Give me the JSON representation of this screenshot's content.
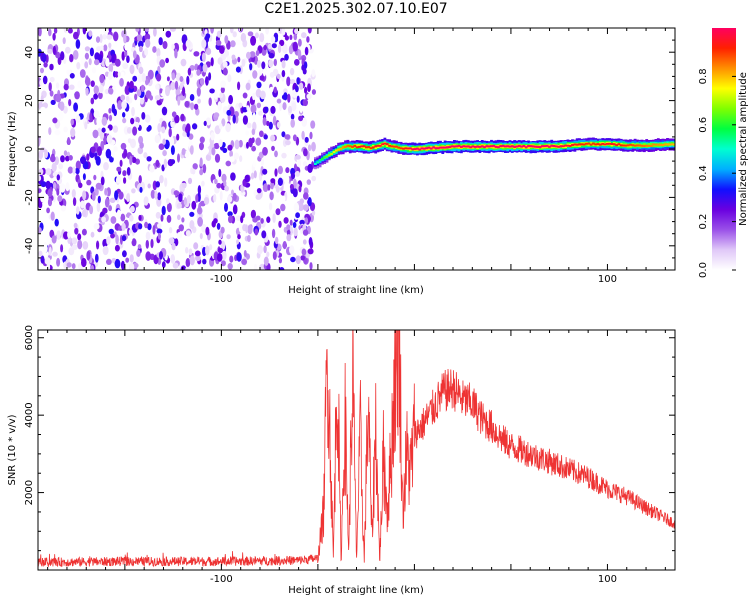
{
  "title": "C2E1.2025.302.07.10.E07",
  "chart_data": [
    {
      "type": "heatmap",
      "xlabel": "Height of straight line (km)",
      "ylabel": "Frequency (Hz)",
      "xlim": [
        -195,
        135
      ],
      "ylim": [
        -50,
        50
      ],
      "xticks": [
        -100,
        100
      ],
      "yticks": [
        -40,
        -20,
        0,
        20,
        40
      ],
      "grid": false,
      "colorbar": {
        "label": "Normalized spectral amplitude",
        "ticks": [
          0.0,
          0.2,
          0.4,
          0.6,
          0.8
        ],
        "range": [
          0,
          1
        ],
        "colors": [
          "#ffffff",
          "#e0c8f8",
          "#9a50e8",
          "#6a00e0",
          "#1010ff",
          "#00b0ff",
          "#00ffd0",
          "#00ff40",
          "#80ff00",
          "#ffff00",
          "#ff9000",
          "#ff2000",
          "#ff0060"
        ]
      },
      "noise_region_x": [
        -195,
        -52
      ],
      "ridge": {
        "x": [
          -52,
          -48,
          -44,
          -40,
          -36,
          -32,
          -28,
          -24,
          -20,
          -16,
          -12,
          -8,
          -4,
          0,
          10,
          20,
          30,
          40,
          50,
          60,
          70,
          80,
          90,
          100,
          110,
          120,
          135
        ],
        "freq": [
          -6,
          -4,
          -2,
          0,
          1,
          1,
          1,
          0.5,
          1,
          2,
          1,
          0.5,
          0,
          0,
          0.5,
          1,
          1,
          1,
          1,
          1,
          1,
          1.5,
          2,
          2,
          1.5,
          1.5,
          2
        ],
        "amplitude": [
          0.5,
          0.6,
          0.7,
          0.8,
          0.85,
          0.9,
          0.95,
          0.9,
          0.95,
          0.95,
          0.9,
          0.9,
          0.95,
          1.0,
          1.0,
          1.0,
          1.0,
          1.0,
          1.0,
          1.0,
          1.0,
          0.95,
          0.9,
          0.95,
          0.9,
          0.85,
          0.8
        ]
      }
    },
    {
      "type": "line",
      "xlabel": "Height of straight line (km)",
      "ylabel": "SNR (10 * v/v)",
      "xlim": [
        -195,
        135
      ],
      "ylim": [
        0,
        6200
      ],
      "xticks": [
        -100,
        100
      ],
      "yticks": [
        2000,
        4000,
        6000
      ],
      "grid": false,
      "color": "#ee3333",
      "series": [
        {
          "x": [
            -195,
            -150,
            -100,
            -60,
            -50,
            -47,
            -45,
            -42,
            -40,
            -38,
            -36,
            -34,
            -32,
            -30,
            -28,
            -26,
            -24,
            -22,
            -20,
            -18,
            -16,
            -14,
            -12,
            -10,
            -8,
            -6,
            -4,
            -2,
            0,
            5,
            10,
            15,
            20,
            25,
            30,
            35,
            40,
            45,
            50,
            60,
            70,
            80,
            90,
            100,
            110,
            120,
            135
          ],
          "values": [
            200,
            220,
            220,
            250,
            300,
            1500,
            5900,
            300,
            5500,
            200,
            4000,
            500,
            5200,
            300,
            3500,
            200,
            4400,
            800,
            3800,
            200,
            3000,
            1500,
            3000,
            5200,
            6200,
            1500,
            3000,
            2500,
            3500,
            3800,
            4200,
            4600,
            4700,
            4400,
            4300,
            3900,
            3700,
            3400,
            3200,
            3000,
            2800,
            2600,
            2400,
            2100,
            1900,
            1600,
            1200
          ]
        }
      ]
    }
  ]
}
